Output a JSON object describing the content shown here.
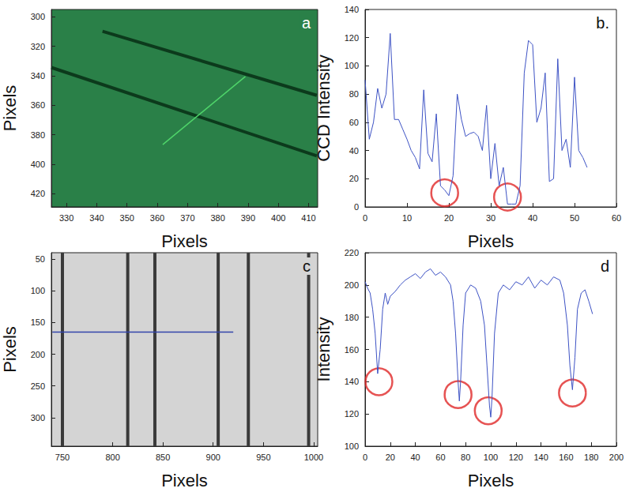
{
  "chart_data": [
    {
      "type": "image",
      "label": "a",
      "xlabel": "Pixels",
      "ylabel": "Pixels",
      "xlim": [
        325,
        413
      ],
      "xticks": [
        330,
        340,
        350,
        360,
        370,
        380,
        390,
        400,
        410
      ],
      "ylim": [
        295,
        429
      ],
      "yticks": [
        300,
        320,
        340,
        360,
        380,
        400,
        420
      ],
      "color": "#2a8048",
      "stripes": [
        {
          "x": [
            341.9,
            412.7
          ],
          "y": [
            309.8,
            353.3
          ],
          "color": "#0c3a1c"
        },
        {
          "x": [
            325,
            412.7
          ],
          "y": [
            334.4,
            394.4
          ],
          "color": "#0c3a1c"
        }
      ],
      "profile": {
        "x": [
          361.8,
          389.1
        ],
        "y": [
          386.7,
          340.5
        ],
        "color": "#4fd46a"
      }
    },
    {
      "type": "line",
      "label": "b.",
      "xlabel": "Pixels",
      "ylabel": "CCD Intensity",
      "xlim": [
        0,
        60
      ],
      "xticks": [
        0,
        10,
        20,
        30,
        40,
        50,
        60
      ],
      "ylim": [
        0,
        140
      ],
      "yticks": [
        0,
        20,
        40,
        60,
        80,
        100,
        120,
        140
      ],
      "grid": false,
      "color": "#3d52c4",
      "x": [
        0,
        1,
        2,
        3,
        4,
        5,
        6,
        7,
        8,
        9,
        10,
        11,
        12,
        13,
        14,
        15,
        16,
        17,
        18,
        19,
        20,
        21,
        22,
        23,
        24,
        25,
        26,
        27,
        28,
        29,
        30,
        31,
        32,
        33,
        34,
        35,
        36,
        37,
        38,
        39,
        40,
        41,
        42,
        43,
        44,
        45,
        46,
        47,
        48,
        49,
        50,
        51,
        52,
        53
      ],
      "values": [
        90,
        48,
        60,
        84,
        70,
        80,
        123,
        62,
        62,
        55,
        48,
        40,
        35,
        27,
        83,
        38,
        32,
        66,
        15,
        12,
        8,
        22,
        80,
        62,
        50,
        52,
        53,
        50,
        40,
        72,
        20,
        45,
        15,
        28,
        2,
        2,
        2,
        15,
        95,
        118,
        115,
        60,
        70,
        95,
        18,
        20,
        105,
        40,
        48,
        28,
        92,
        40,
        35,
        28
      ],
      "circles": {
        "x": [
          19,
          34
        ],
        "y": [
          10,
          7
        ],
        "color": "#e02828"
      }
    },
    {
      "type": "image",
      "label": "c",
      "xlabel": "Pixels",
      "ylabel": "Pixels",
      "xlim": [
        739,
        1004
      ],
      "xticks": [
        750,
        800,
        850,
        900,
        950,
        1000
      ],
      "ylim": [
        40,
        345
      ],
      "yticks": [
        50,
        100,
        150,
        200,
        250,
        300
      ],
      "color": "#d4d4d4",
      "stripes": [
        {
          "x": [
            750,
            750
          ],
          "y": [
            40,
            345
          ],
          "color": "#3a3a3a"
        },
        {
          "x": [
            815,
            815
          ],
          "y": [
            40,
            345
          ],
          "color": "#3a3a3a"
        },
        {
          "x": [
            842,
            842
          ],
          "y": [
            40,
            345
          ],
          "color": "#3a3a3a"
        },
        {
          "x": [
            905,
            905
          ],
          "y": [
            40,
            345
          ],
          "color": "#3a3a3a"
        },
        {
          "x": [
            935,
            935
          ],
          "y": [
            40,
            345
          ],
          "color": "#3a3a3a"
        },
        {
          "x": [
            995,
            995
          ],
          "y": [
            40,
            345
          ],
          "color": "#3a3a3a"
        }
      ],
      "profile": {
        "x": [
          740,
          920
        ],
        "y": [
          165,
          165
        ],
        "color": "#3344aa"
      }
    },
    {
      "type": "line",
      "label": "d",
      "xlabel": "Pixels",
      "ylabel": "Intensity",
      "xlim": [
        0,
        200
      ],
      "xticks": [
        0,
        20,
        40,
        60,
        80,
        100,
        120,
        140,
        160,
        180,
        200
      ],
      "ylim": [
        100,
        220
      ],
      "yticks": [
        100,
        120,
        140,
        160,
        180,
        200,
        220
      ],
      "grid": false,
      "color": "#3d52c4",
      "x": [
        0,
        2,
        4,
        6,
        8,
        10,
        12,
        14,
        16,
        18,
        20,
        24,
        28,
        32,
        36,
        40,
        44,
        48,
        52,
        56,
        60,
        64,
        68,
        70,
        72,
        74,
        75,
        76,
        78,
        80,
        84,
        88,
        92,
        95,
        97,
        99,
        100,
        101,
        103,
        106,
        110,
        115,
        120,
        125,
        130,
        135,
        140,
        145,
        150,
        155,
        158,
        161,
        163,
        165,
        167,
        169,
        172,
        175,
        178,
        181
      ],
      "values": [
        202,
        198,
        195,
        185,
        170,
        145,
        160,
        185,
        195,
        188,
        193,
        196,
        200,
        203,
        205,
        207,
        204,
        208,
        210,
        206,
        208,
        205,
        200,
        190,
        170,
        140,
        128,
        140,
        175,
        195,
        200,
        198,
        190,
        175,
        150,
        125,
        118,
        130,
        170,
        195,
        200,
        197,
        202,
        200,
        205,
        198,
        203,
        200,
        205,
        203,
        195,
        175,
        150,
        135,
        155,
        185,
        195,
        197,
        190,
        182
      ],
      "circles": {
        "x": [
          11,
          74,
          98,
          165
        ],
        "y": [
          140,
          132,
          122,
          133
        ],
        "color": "#e02828"
      }
    }
  ]
}
